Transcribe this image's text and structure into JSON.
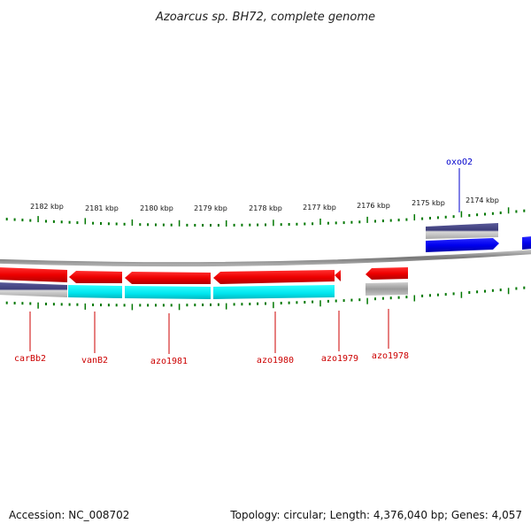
{
  "title": "Azoarcus sp. BH72, complete genome",
  "footer": {
    "accession": "Accession: NC_008702",
    "summary": "Topology: circular; Length: 4,376,040 bp; Genes: 4,057"
  },
  "scale_labels": [
    "2182 kbp",
    "2181 kbp",
    "2180 kbp",
    "2179 kbp",
    "2178 kbp",
    "2177 kbp",
    "2176 kbp",
    "2175 kbp",
    "2174 kbp"
  ],
  "genes_lower": [
    "carBb2",
    "vanB2",
    "azo1981",
    "azo1980",
    "azo1979",
    "azo1978"
  ],
  "genes_upper": [
    "oxoO2"
  ],
  "colors": {
    "forward_gene": "#0000ee",
    "reverse_gene": "#ee0000",
    "cds_cyan": "#00e5ee",
    "cds_purple": "#4a4a8a",
    "cds_gray": "#999999",
    "backbone": "#888888",
    "ticks": "#007700",
    "upper_label": "#0000cc",
    "lower_label": "#cc0000"
  }
}
